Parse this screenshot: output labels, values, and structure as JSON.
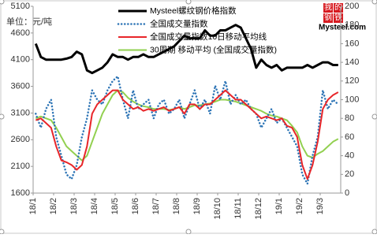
{
  "chart_data": {
    "type": "line",
    "unit_label": "单位：元/吨",
    "logo": {
      "chars": [
        "我",
        "的",
        "钢",
        "铁"
      ],
      "text": "Mysteel.com"
    },
    "categories": [
      "18/1",
      null,
      null,
      null,
      "18/2",
      null,
      null,
      null,
      "18/3",
      null,
      null,
      null,
      "18/4",
      null,
      null,
      null,
      "18/5",
      null,
      null,
      null,
      "18/6",
      null,
      null,
      null,
      "18/7",
      null,
      null,
      null,
      "18/8",
      null,
      null,
      null,
      "18/9",
      null,
      null,
      null,
      "18/10",
      null,
      null,
      null,
      "18/11",
      null,
      null,
      null,
      "18/12",
      null,
      null,
      null,
      "19/1",
      null,
      null,
      null,
      "19/2",
      null,
      null,
      null,
      "19/3",
      null,
      null,
      null
    ],
    "ylim": [
      1600,
      5100
    ],
    "yticks": [
      1600,
      2100,
      2600,
      3100,
      3600,
      4100,
      4600,
      5100
    ],
    "y2lim": [
      0,
      200
    ],
    "y2ticks": [
      0,
      20,
      40,
      60,
      80,
      100,
      120,
      140,
      160,
      180,
      200
    ],
    "grid": false,
    "series": [
      {
        "name": "Mysteel螺纹钢价格指数",
        "color": "#000000",
        "style": "solid",
        "width": 3,
        "values": [
          4400,
          4150,
          4100,
          4100,
          4100,
          4100,
          4120,
          4150,
          4250,
          4200,
          3900,
          3850,
          3900,
          3950,
          4050,
          4200,
          4150,
          4150,
          4100,
          4150,
          4150,
          4200,
          4150,
          4150,
          4200,
          4250,
          4300,
          4350,
          4450,
          4550,
          4500,
          4500,
          4500,
          4650,
          4550,
          4550,
          4650,
          4650,
          4700,
          4750,
          4700,
          4500,
          4300,
          3950,
          4100,
          4000,
          3950,
          4000,
          3900,
          3950,
          3950,
          3950,
          3950,
          4000,
          3950,
          4000,
          4050,
          4050,
          4000,
          4000
        ]
      },
      {
        "name": "全国成交量指数",
        "color": "#2e75b6",
        "style": "dotted",
        "width": 2.5,
        "axis": "y2",
        "values": [
          85,
          70,
          90,
          100,
          60,
          40,
          20,
          15,
          30,
          60,
          80,
          110,
          100,
          95,
          110,
          120,
          125,
          100,
          80,
          110,
          90,
          95,
          100,
          80,
          95,
          100,
          85,
          90,
          100,
          80,
          95,
          110,
          90,
          100,
          85,
          115,
          100,
          120,
          95,
          105,
          95,
          100,
          90,
          85,
          70,
          80,
          90,
          75,
          80,
          70,
          60,
          50,
          20,
          10,
          40,
          60,
          110,
          90,
          100,
          95
        ]
      },
      {
        "name": "全国成交量指数10日移动平均线",
        "color": "#e8262a",
        "style": "solid",
        "width": 2,
        "axis": "y2",
        "values": [
          78,
          80,
          75,
          70,
          50,
          35,
          33,
          30,
          25,
          30,
          50,
          85,
          95,
          100,
          105,
          110,
          110,
          100,
          95,
          90,
          92,
          88,
          90,
          88,
          90,
          92,
          88,
          90,
          92,
          85,
          95,
          95,
          90,
          95,
          95,
          100,
          105,
          110,
          105,
          100,
          100,
          95,
          90,
          85,
          80,
          82,
          80,
          78,
          80,
          72,
          70,
          60,
          30,
          15,
          30,
          55,
          90,
          100,
          105,
          108
        ]
      },
      {
        "name": "30周期 移动平均 (全国成交量指数)",
        "color": "#92d050",
        "style": "solid",
        "width": 2,
        "axis": "y2",
        "values": [
          80,
          82,
          80,
          78,
          70,
          60,
          50,
          45,
          40,
          35,
          40,
          55,
          70,
          85,
          95,
          105,
          110,
          108,
          102,
          98,
          95,
          93,
          92,
          90,
          90,
          90,
          89,
          90,
          92,
          90,
          92,
          94,
          94,
          95,
          96,
          98,
          100,
          100,
          99,
          98,
          96,
          94,
          92,
          90,
          88,
          85,
          83,
          82,
          80,
          78,
          72,
          65,
          50,
          40,
          38,
          42,
          45,
          50,
          55,
          58
        ]
      }
    ]
  }
}
